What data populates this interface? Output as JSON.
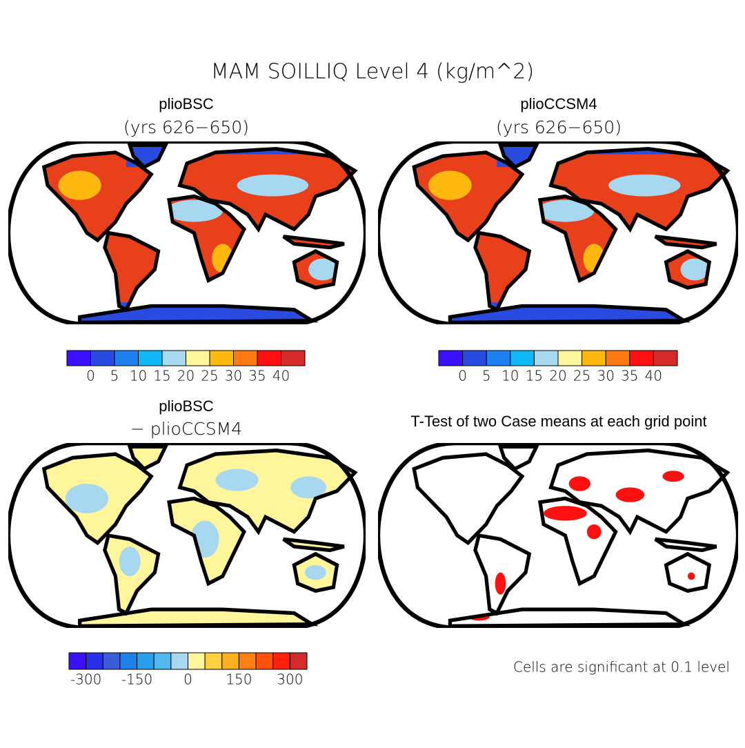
{
  "title": "MAM SOILLIQ Level 4 (kg/m^2)",
  "panels": [
    {
      "title": "plioBSC",
      "subtitle": "(yrs 626−650)"
    },
    {
      "title": "plioCCSM4",
      "subtitle": "(yrs 626−650)"
    },
    {
      "title": "plioBSC",
      "subtitle": "− plioCCSM4"
    },
    {
      "title": "T-Test of two Case means at each grid point"
    }
  ],
  "colorbars": [
    {
      "colors": [
        "#3a10ff",
        "#2a4be0",
        "#1f80f0",
        "#10b8f8",
        "#a8d8f0",
        "#fff59a",
        "#ffb810",
        "#ff7a10",
        "#ff1010",
        "#d42a2a"
      ],
      "lim": [
        -5,
        45
      ],
      "ticks": [
        0,
        5,
        10,
        15,
        20,
        25,
        30,
        35,
        40
      ]
    },
    {
      "colors": [
        "#3a10ff",
        "#2a4be0",
        "#1f80f0",
        "#10b8f8",
        "#a8d8f0",
        "#fff59a",
        "#ffb810",
        "#ff7a10",
        "#ff1010",
        "#d42a2a"
      ],
      "lim": [
        -5,
        45
      ],
      "ticks": [
        0,
        5,
        10,
        15,
        20,
        25,
        30,
        35,
        40
      ]
    },
    {
      "colors": [
        "#3a10ff",
        "#2a30e8",
        "#3c5cd8",
        "#1f7fe8",
        "#2aa0ec",
        "#50b8ea",
        "#a8d8f0",
        "#fff59a",
        "#ffd040",
        "#ffb020",
        "#ff8010",
        "#ff5010",
        "#ff2010",
        "#d42a2a"
      ],
      "lim": [
        -350,
        350
      ],
      "ticks": [
        -300,
        -150,
        0,
        150,
        300
      ]
    }
  ],
  "note": "Cells are significant at 0.1 level"
}
